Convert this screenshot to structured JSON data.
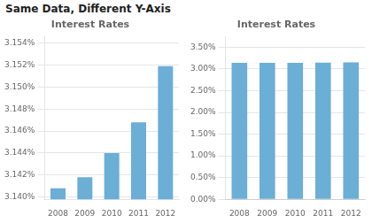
{
  "title": "Same Data, Different Y-Axis",
  "chart_data": [
    {
      "type": "bar",
      "subtitle": "Interest Rates",
      "categories": [
        "2008",
        "2009",
        "2010",
        "2011",
        "2012"
      ],
      "values": [
        3.1408,
        3.1418,
        3.144,
        3.1468,
        3.1519
      ],
      "color": "#6baed6",
      "ylim": [
        3.1398,
        3.1546
      ],
      "yticks": [
        {
          "value": 3.14,
          "label": "3.140%"
        },
        {
          "value": 3.142,
          "label": "3.142%"
        },
        {
          "value": 3.144,
          "label": "3.144%"
        },
        {
          "value": 3.146,
          "label": "3.146%"
        },
        {
          "value": 3.148,
          "label": "3.148%"
        },
        {
          "value": 3.15,
          "label": "3.150%"
        },
        {
          "value": 3.152,
          "label": "3.152%"
        },
        {
          "value": 3.154,
          "label": "3.154%"
        }
      ],
      "grid": true
    },
    {
      "type": "bar",
      "subtitle": "Interest Rates",
      "categories": [
        "2008",
        "2009",
        "2010",
        "2011",
        "2012"
      ],
      "values": [
        3.1408,
        3.1418,
        3.144,
        3.1468,
        3.1519
      ],
      "color": "#6baed6",
      "ylim": [
        0.0,
        3.75
      ],
      "yticks": [
        {
          "value": 0.0,
          "label": "0.00%"
        },
        {
          "value": 0.5,
          "label": "0.50%"
        },
        {
          "value": 1.0,
          "label": "1.00%"
        },
        {
          "value": 1.5,
          "label": "1.50%"
        },
        {
          "value": 2.0,
          "label": "2.00%"
        },
        {
          "value": 2.5,
          "label": "2.50%"
        },
        {
          "value": 3.0,
          "label": "3.00%"
        },
        {
          "value": 3.5,
          "label": "3.50%"
        }
      ],
      "grid": true
    }
  ]
}
